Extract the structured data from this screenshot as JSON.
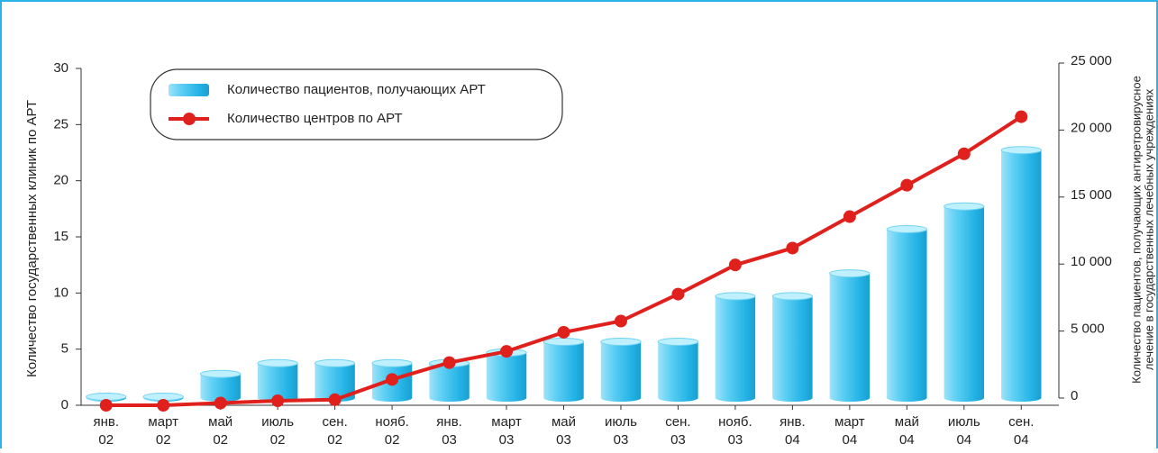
{
  "chart_data": {
    "type": "bar-line",
    "y_label": "Количество государственных клиник по АРТ",
    "y2_label": [
      "Количество пациентов, получающих антиретровирусное",
      "лечение в государственных лечебных учреждениях"
    ],
    "categories": [
      [
        "янв.",
        "02"
      ],
      [
        "март",
        "02"
      ],
      [
        "май",
        "02"
      ],
      [
        "июль",
        "02"
      ],
      [
        "сен.",
        "02"
      ],
      [
        "нояб.",
        "02"
      ],
      [
        "янв.",
        "03"
      ],
      [
        "март",
        "03"
      ],
      [
        "май",
        "03"
      ],
      [
        "июль",
        "03"
      ],
      [
        "сен.",
        "03"
      ],
      [
        "нояб.",
        "03"
      ],
      [
        "янв.",
        "04"
      ],
      [
        "март",
        "04"
      ],
      [
        "май",
        "04"
      ],
      [
        "июль",
        "04"
      ],
      [
        "сен.",
        "04"
      ]
    ],
    "series": [
      {
        "name": "Количество пациентов, получающих АРТ",
        "type": "bar",
        "axis": "y2",
        "color": "#3ec3ef",
        "values": [
          100,
          100,
          1800,
          2600,
          2600,
          2600,
          2600,
          3400,
          4200,
          4200,
          4200,
          7600,
          7600,
          9300,
          12600,
          14300,
          18500
        ]
      },
      {
        "name": "Количество центров по АРТ",
        "type": "line",
        "axis": "y",
        "color": "#e0201c",
        "values": [
          0,
          0,
          0.2,
          0.4,
          0.5,
          2.3,
          3.8,
          4.8,
          6.5,
          7.5,
          9.9,
          12.5,
          14,
          16.8,
          19.6,
          22.4,
          25.7
        ]
      }
    ],
    "ylim": [
      0,
      30
    ],
    "yticks": [
      0,
      5,
      10,
      15,
      20,
      25,
      30
    ],
    "y2lim": [
      0,
      25000
    ],
    "y2ticks": [
      0,
      {
        "value": 5000,
        "label": "5 000"
      },
      {
        "value": 10000,
        "label": "10 000"
      },
      {
        "value": 15000,
        "label": "15 000"
      },
      {
        "value": 20000,
        "label": "20 000"
      },
      {
        "value": 25000,
        "label": "25 000"
      }
    ]
  }
}
